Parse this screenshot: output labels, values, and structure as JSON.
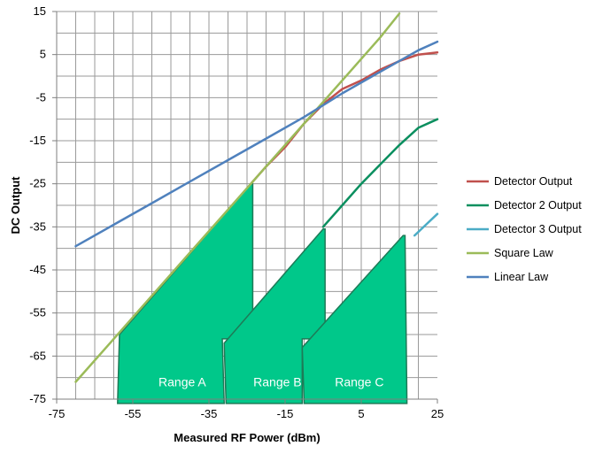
{
  "chart_data": {
    "type": "line",
    "title": "",
    "xlabel": "Measured RF Power (dBm)",
    "ylabel": "DC Output",
    "xlim": [
      -75,
      25
    ],
    "ylim": [
      -75,
      15
    ],
    "x_ticks": [
      -75,
      -55,
      -35,
      -15,
      5,
      25
    ],
    "y_ticks": [
      15,
      5,
      -5,
      -15,
      -25,
      -35,
      -45,
      -55,
      -65,
      -75
    ],
    "x_minor_grid_step": 5,
    "y_grid_step": 5,
    "grid": true,
    "legend_position": "right",
    "series": [
      {
        "name": "Detector Output",
        "color": "#c0504d",
        "points": [
          [
            -24,
            -25
          ],
          [
            -20,
            -21
          ],
          [
            -15,
            -16.5
          ],
          [
            -10,
            -11
          ],
          [
            -5,
            -6.5
          ],
          [
            0,
            -3
          ],
          [
            5,
            -1
          ],
          [
            10,
            1.5
          ],
          [
            15,
            3.5
          ],
          [
            20,
            5
          ],
          [
            25,
            5.5
          ]
        ]
      },
      {
        "name": "Detector 2 Output",
        "color": "#0b8f5f",
        "points": [
          [
            -5,
            -35
          ],
          [
            0,
            -30
          ],
          [
            5,
            -25
          ],
          [
            10,
            -20.5
          ],
          [
            15,
            -16
          ],
          [
            20,
            -12
          ],
          [
            25,
            -10
          ]
        ]
      },
      {
        "name": "Detector 3 Output",
        "color": "#4bacc6",
        "points": [
          [
            19,
            -37
          ],
          [
            22,
            -34.5
          ],
          [
            25,
            -32
          ]
        ]
      },
      {
        "name": "Square Law",
        "color": "#9bbb59",
        "points": [
          [
            -70,
            -71
          ],
          [
            -60,
            -61
          ],
          [
            -50,
            -51
          ],
          [
            -40,
            -41
          ],
          [
            -30,
            -31
          ],
          [
            -20,
            -21
          ],
          [
            -10,
            -11
          ],
          [
            0,
            -1
          ],
          [
            10,
            9
          ],
          [
            15,
            14.5
          ]
        ]
      },
      {
        "name": "Linear Law",
        "color": "#4f81bd",
        "points": [
          [
            -70,
            -39.5
          ],
          [
            -60,
            -34.5
          ],
          [
            -50,
            -29.5
          ],
          [
            -40,
            -24.5
          ],
          [
            -30,
            -19.5
          ],
          [
            -20,
            -14.5
          ],
          [
            -10,
            -9.5
          ],
          [
            0,
            -4
          ],
          [
            10,
            1
          ],
          [
            20,
            6
          ],
          [
            25,
            8
          ]
        ]
      }
    ],
    "ranges": [
      {
        "label": "Range A",
        "color": "#00c88a",
        "label_pos": [
          -42,
          -72
        ],
        "polygon": [
          [
            -59,
            -76
          ],
          [
            -58.5,
            -60
          ],
          [
            -24,
            -25
          ],
          [
            -23.5,
            -25
          ],
          [
            -23.5,
            -61
          ],
          [
            -31.5,
            -61
          ],
          [
            -31,
            -76
          ]
        ]
      },
      {
        "label": "Range B",
        "color": "#00c88a",
        "label_pos": [
          -17,
          -72
        ],
        "polygon": [
          [
            -30.5,
            -76
          ],
          [
            -31,
            -62
          ],
          [
            -5,
            -35.5
          ],
          [
            -4.5,
            -35.5
          ],
          [
            -4.5,
            -61
          ],
          [
            -10.5,
            -61
          ],
          [
            -10.5,
            -76
          ]
        ]
      },
      {
        "label": "Range C",
        "color": "#00c88a",
        "label_pos": [
          4.5,
          -72
        ],
        "polygon": [
          [
            -10,
            -76
          ],
          [
            -10.5,
            -63
          ],
          [
            16,
            -37
          ],
          [
            16.5,
            -37
          ],
          [
            17,
            -76
          ]
        ]
      }
    ]
  }
}
